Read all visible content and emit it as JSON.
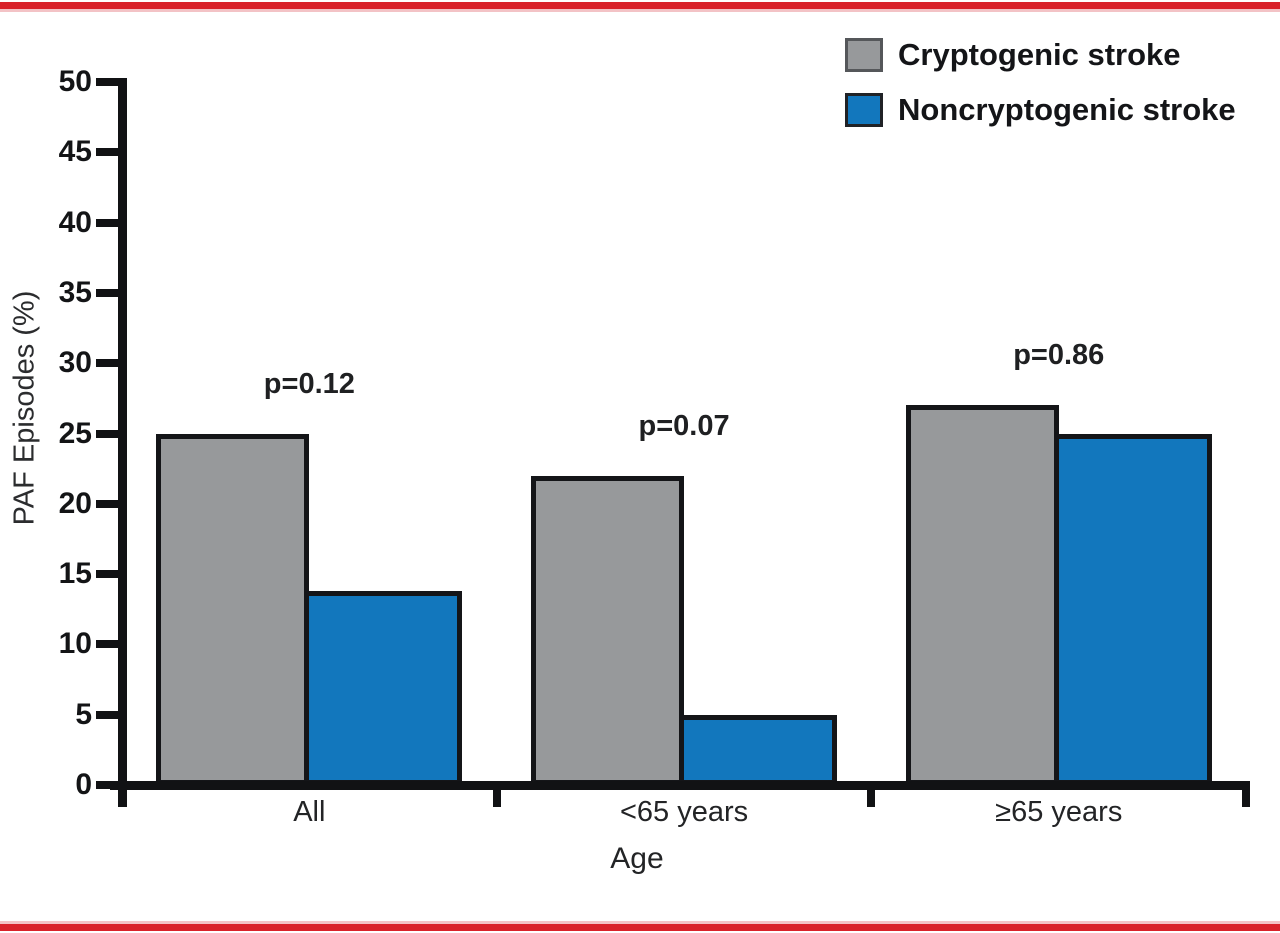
{
  "page": {
    "background": "#ffffff",
    "accent_rule_color": "#d9222a",
    "accent_rule_pale_color": "#f3c3c6"
  },
  "chart_data": {
    "type": "bar",
    "title": "",
    "categories": [
      "All",
      "<65 years",
      "≥65 years"
    ],
    "series": [
      {
        "name": "Cryptogenic stroke",
        "color": "#97999b",
        "values": [
          25,
          22,
          27
        ]
      },
      {
        "name": "Noncryptogenic stroke",
        "color": "#1277bd",
        "values": [
          13.8,
          5,
          25
        ]
      }
    ],
    "annotations": [
      "p=0.12",
      "p=0.07",
      "p=0.86"
    ],
    "xlabel": "Age",
    "ylabel": "PAF Episodes (%)",
    "ylim": [
      0,
      50
    ],
    "ytick_step": 5,
    "bar_border_color": "#141518",
    "legend": {
      "position": "top-right",
      "entries": [
        "Cryptogenic stroke",
        "Noncryptogenic stroke"
      ],
      "swatch_border_colors": [
        "#55575a",
        "#202226"
      ]
    },
    "grid": false
  }
}
